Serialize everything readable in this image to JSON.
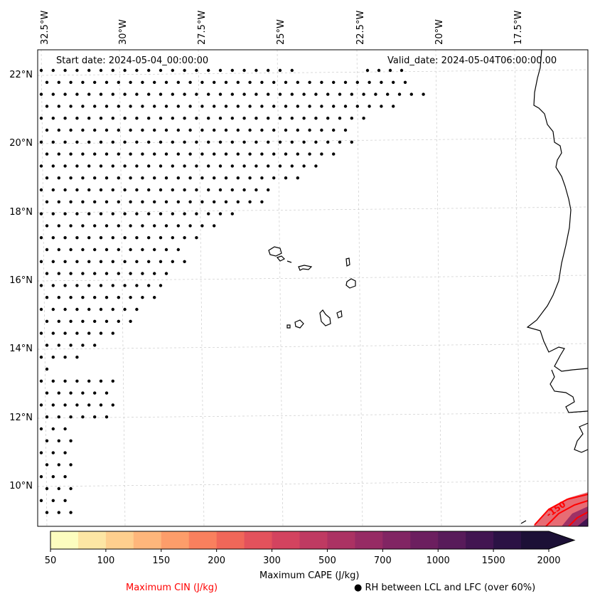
{
  "map": {
    "start_date": "Start date: 2024-05-04_00:00:00",
    "valid_date": "Valid_date: 2024-05-04T06:00:00.00",
    "lon_labels": [
      "32.5°W",
      "30°W",
      "27.5°W",
      "25°W",
      "22.5°W",
      "20°W",
      "17.5°W"
    ],
    "lat_labels": [
      "22°N",
      "20°N",
      "18°N",
      "16°N",
      "14°N",
      "12°N",
      "10°N"
    ],
    "cin_contour_label": "-150",
    "colors": {
      "coastline": "#000000",
      "gridline": "#cccccc",
      "cin_contour": "#ff0000",
      "stipple": "#000000"
    }
  },
  "colorbar": {
    "label": "Maximum CAPE (J/kg)",
    "ticks": [
      "50",
      "100",
      "150",
      "200",
      "300",
      "500",
      "700",
      "1000",
      "1500",
      "2000"
    ],
    "colors": [
      "#fcfdbf",
      "#fde6a4",
      "#fecf8e",
      "#feb67b",
      "#fd9d6a",
      "#f9805e",
      "#f06759",
      "#e3525c",
      "#d3435f",
      "#bf3a62",
      "#ab3263",
      "#962b64",
      "#812563",
      "#6c1f5f",
      "#581b5a",
      "#421551",
      "#2b1244",
      "#1c1036"
    ]
  },
  "legend": {
    "cin_label": "Maximum CIN (J/kg)",
    "cin_color": "#ff0000",
    "rh_marker": "●",
    "rh_label": "RH between LCL and LFC (over 60%)"
  }
}
